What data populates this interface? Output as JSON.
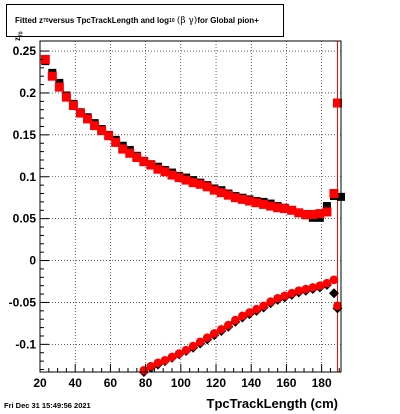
{
  "title": {
    "part1": "Fitted  z",
    "sub1": "70",
    "part2": " versus TpcTrackLength and log",
    "sub2": "10",
    "greek": "(β  γ)",
    "part3": " for Global pion+"
  },
  "footer": {
    "date": "Fri Dec 31 15:49:56 2021"
  },
  "chart_data": {
    "type": "scatter",
    "xlabel": "TpcTrackLength (cm)",
    "ylabel": "z",
    "ylabel_sub": "70",
    "xlim": [
      20,
      191
    ],
    "ylim": [
      -0.133,
      0.262
    ],
    "x_ticks": [
      "20",
      "40",
      "60",
      "80",
      "100",
      "120",
      "140",
      "160",
      "180"
    ],
    "y_ticks": [
      "-0.1",
      "-0.05",
      "0",
      "0.05",
      "0.1",
      "0.15",
      "0.2",
      "0.25"
    ],
    "grid": true,
    "colors": {
      "red": "#ff0000",
      "black": "#000000"
    },
    "series": [
      {
        "marker": "square",
        "color": "#000000",
        "x": [
          23,
          27,
          31,
          35,
          39,
          43,
          47,
          51,
          55,
          59,
          63,
          67,
          71,
          75,
          79,
          83,
          87,
          91,
          95,
          99,
          103,
          107,
          111,
          115,
          119,
          123,
          127,
          131,
          135,
          139,
          143,
          147,
          151,
          155,
          159,
          163,
          167,
          171,
          175,
          179,
          183,
          187,
          191
        ],
        "y": [
          0.238,
          0.224,
          0.212,
          0.197,
          0.187,
          0.177,
          0.171,
          0.164,
          0.157,
          0.15,
          0.144,
          0.137,
          0.132,
          0.125,
          0.119,
          0.115,
          0.112,
          0.108,
          0.105,
          0.101,
          0.099,
          0.096,
          0.093,
          0.09,
          0.086,
          0.084,
          0.08,
          0.077,
          0.075,
          0.073,
          0.071,
          0.07,
          0.068,
          0.065,
          0.063,
          0.06,
          0.057,
          0.054,
          0.051,
          0.051,
          0.065,
          0.077,
          0.076
        ]
      },
      {
        "marker": "square",
        "color": "#ff0000",
        "x": [
          23,
          27,
          31,
          35,
          39,
          43,
          47,
          51,
          55,
          59,
          63,
          67,
          71,
          75,
          79,
          83,
          87,
          91,
          95,
          99,
          103,
          107,
          111,
          115,
          119,
          123,
          127,
          131,
          135,
          139,
          143,
          147,
          151,
          155,
          159,
          163,
          167,
          171,
          175,
          179,
          183,
          187,
          189
        ],
        "y": [
          0.24,
          0.22,
          0.207,
          0.195,
          0.185,
          0.176,
          0.169,
          0.161,
          0.155,
          0.149,
          0.141,
          0.133,
          0.128,
          0.123,
          0.118,
          0.114,
          0.109,
          0.106,
          0.102,
          0.099,
          0.096,
          0.093,
          0.091,
          0.088,
          0.084,
          0.081,
          0.078,
          0.075,
          0.073,
          0.071,
          0.069,
          0.067,
          0.065,
          0.063,
          0.062,
          0.06,
          0.057,
          0.055,
          0.055,
          0.056,
          0.058,
          0.08,
          0.188
        ]
      },
      {
        "marker": "diamond",
        "color": "#000000",
        "x": [
          79,
          83,
          87,
          91,
          95,
          99,
          103,
          107,
          111,
          115,
          119,
          123,
          127,
          131,
          135,
          139,
          143,
          147,
          151,
          155,
          159,
          163,
          167,
          171,
          175,
          179,
          183,
          187,
          189
        ],
        "y": [
          -0.133,
          -0.128,
          -0.124,
          -0.12,
          -0.116,
          -0.112,
          -0.108,
          -0.104,
          -0.099,
          -0.094,
          -0.089,
          -0.084,
          -0.079,
          -0.073,
          -0.068,
          -0.064,
          -0.06,
          -0.056,
          -0.051,
          -0.047,
          -0.044,
          -0.041,
          -0.038,
          -0.036,
          -0.034,
          -0.032,
          -0.029,
          -0.039,
          -0.057
        ]
      },
      {
        "marker": "circle",
        "color": "#ff0000",
        "x": [
          79,
          83,
          87,
          91,
          95,
          99,
          103,
          107,
          111,
          115,
          119,
          123,
          127,
          131,
          135,
          139,
          143,
          147,
          151,
          155,
          159,
          163,
          167,
          171,
          175,
          179,
          183,
          187,
          189
        ],
        "y": [
          -0.131,
          -0.126,
          -0.122,
          -0.119,
          -0.115,
          -0.111,
          -0.107,
          -0.102,
          -0.097,
          -0.092,
          -0.087,
          -0.082,
          -0.077,
          -0.071,
          -0.066,
          -0.062,
          -0.058,
          -0.054,
          -0.049,
          -0.045,
          -0.042,
          -0.039,
          -0.036,
          -0.034,
          -0.032,
          -0.03,
          -0.027,
          -0.023,
          -0.054
        ]
      }
    ]
  }
}
